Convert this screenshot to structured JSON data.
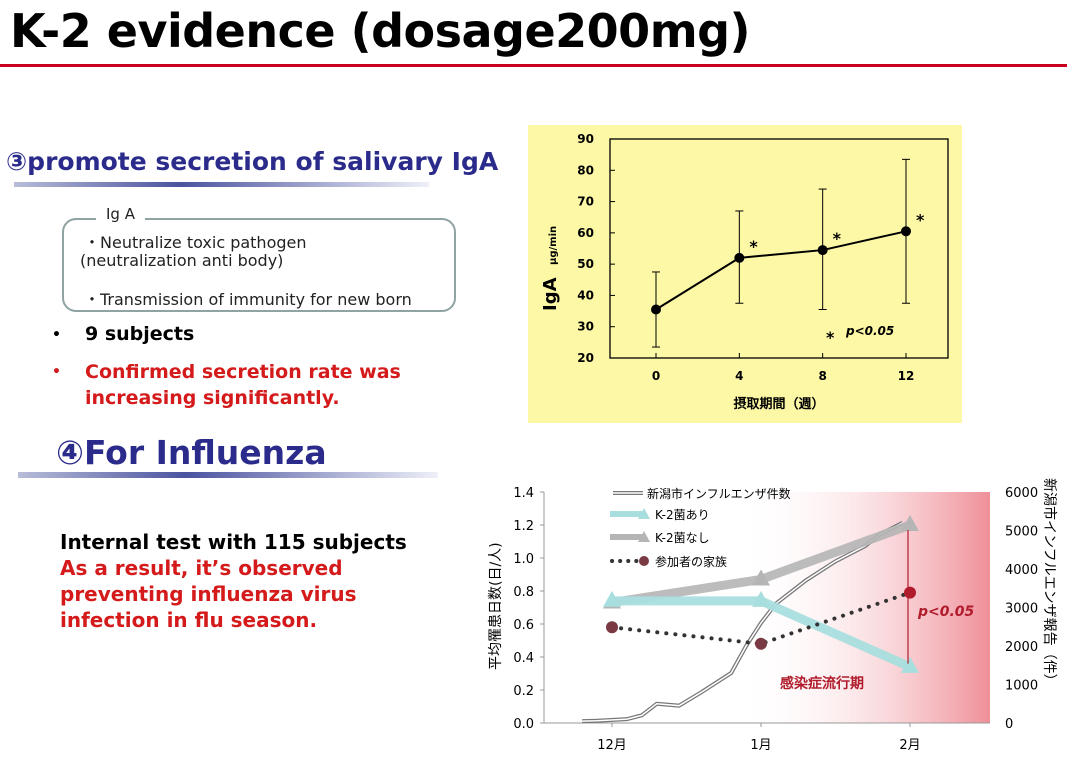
{
  "title": "K-2 evidence (dosage200mg)",
  "section3": {
    "heading": "③promote secretion of salivary IgA",
    "box_label": "Ig A",
    "box_line1": "・Neutralize toxic pathogen",
    "box_line2": "(neutralization anti body)",
    "box_line3": "・Transmission of immunity for new born",
    "bullet1_mark": "•",
    "bullet1": "9 subjects",
    "bullet2_mark": "•",
    "bullet2_line1": "Confirmed secretion rate was",
    "bullet2_line2": "increasing significantly."
  },
  "section4": {
    "heading": "④For Influenza",
    "line1": "Internal test with 115 subjects",
    "line2": "As a result, it’s observed",
    "line3": "preventing influenza virus",
    "line4": "infection in flu season."
  },
  "chart_data": [
    {
      "type": "line",
      "title": "",
      "xlabel": "摂取期間（週）",
      "ylabel": "IgA",
      "ylabel_unit": "μg/min",
      "categories": [
        "0",
        "4",
        "8",
        "12"
      ],
      "x": [
        0,
        4,
        8,
        12
      ],
      "series": [
        {
          "name": "IgA",
          "values": [
            35.5,
            52,
            54.5,
            60.5
          ]
        }
      ],
      "error_high": [
        47.5,
        67,
        74,
        83.5
      ],
      "error_low": [
        23.5,
        37.5,
        35.5,
        37.5
      ],
      "significant": [
        false,
        true,
        true,
        true
      ],
      "star": "*",
      "legend_star": "*",
      "legend_text": "p<0.05",
      "ylim": [
        20,
        90
      ],
      "yticks": [
        20,
        30,
        40,
        50,
        60,
        70,
        80,
        90
      ],
      "colors": {
        "background": "#fdf8a6",
        "line": "#000000"
      }
    },
    {
      "type": "line",
      "title": "",
      "xlabel": "",
      "ylabel": "平均罹患日数(日/人)",
      "y2label": "新潟市インフルエンザ報告（件）",
      "categories": [
        "12月",
        "1月",
        "2月"
      ],
      "ylim": [
        0,
        1.4
      ],
      "yticks": [
        "0.0",
        "0.2",
        "0.4",
        "0.6",
        "0.8",
        "1.0",
        "1.2",
        "1.4"
      ],
      "y2lim": [
        0,
        6000
      ],
      "y2ticks": [
        "0",
        "1000",
        "2000",
        "3000",
        "4000",
        "5000",
        "6000"
      ],
      "series": [
        {
          "name": "K-2菌あり",
          "axis": "left",
          "x": [
            0,
            1,
            2
          ],
          "values": [
            0.74,
            0.74,
            0.34
          ],
          "color": "#a9dede"
        },
        {
          "name": "K-2菌なし",
          "axis": "left",
          "x": [
            0,
            1,
            2
          ],
          "values": [
            0.73,
            0.87,
            1.2
          ],
          "color": "#b5b5b5"
        },
        {
          "name": "参加者の家族",
          "axis": "left",
          "x": [
            0,
            1,
            2
          ],
          "values": [
            0.58,
            0.48,
            0.79
          ],
          "color": "#8c3a4a"
        }
      ],
      "report_series": {
        "name": "新潟市インフルエンザ件数",
        "axis": "right",
        "x": [
          -0.2,
          -0.1,
          0.1,
          0.2,
          0.3,
          0.45,
          0.6,
          0.8,
          0.9,
          1.0,
          1.1,
          1.3,
          1.5,
          1.7,
          1.8,
          1.95
        ],
        "values": [
          50,
          60,
          100,
          200,
          500,
          450,
          800,
          1300,
          2000,
          2600,
          3100,
          3700,
          4200,
          4600,
          4900,
          5200
        ],
        "color": "#888888"
      },
      "significance_label": "p<0.05",
      "season_label": "感染症流行期",
      "colors": {
        "season_band": "#f2a0a8",
        "accent": "#b01c2c"
      }
    }
  ]
}
